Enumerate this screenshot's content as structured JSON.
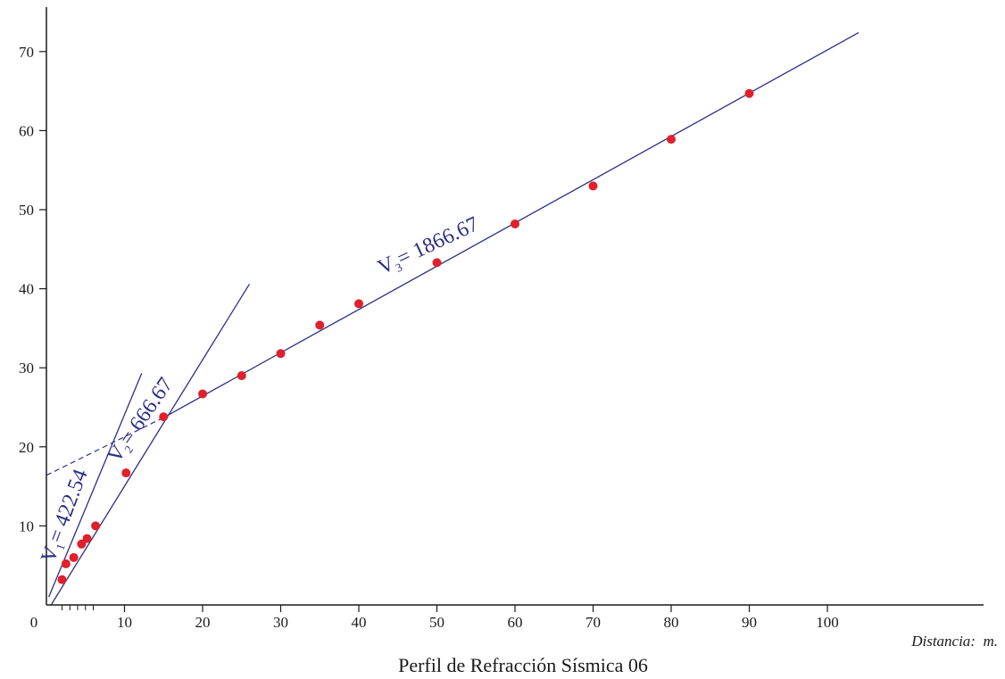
{
  "chart_data": {
    "type": "scatter",
    "title": "Perfil de Refracción Sísmica 06",
    "xlabel": "Distancia:  m.",
    "ylabel": "",
    "xlim": [
      0,
      120
    ],
    "ylim": [
      0,
      75
    ],
    "x_ticks": [
      0,
      10,
      20,
      30,
      40,
      50,
      60,
      70,
      80,
      90,
      100
    ],
    "y_ticks": [
      10,
      20,
      30,
      40,
      50,
      60,
      70
    ],
    "minor_x_ticks": [
      2,
      3,
      4,
      5,
      6
    ],
    "grid": false,
    "colors": {
      "points": "#e0202a",
      "lines": "#2b2f86",
      "axes": "#1a1a1a"
    },
    "points": [
      {
        "x": 2,
        "y": 3.2
      },
      {
        "x": 2.5,
        "y": 5.2
      },
      {
        "x": 3.5,
        "y": 6.0
      },
      {
        "x": 4.5,
        "y": 7.7
      },
      {
        "x": 5.2,
        "y": 8.4
      },
      {
        "x": 6.3,
        "y": 10.0
      },
      {
        "x": 10.2,
        "y": 16.7
      },
      {
        "x": 15,
        "y": 23.8
      },
      {
        "x": 20,
        "y": 26.7
      },
      {
        "x": 25,
        "y": 29.0
      },
      {
        "x": 30,
        "y": 31.8
      },
      {
        "x": 35,
        "y": 35.4
      },
      {
        "x": 40,
        "y": 38.1
      },
      {
        "x": 50,
        "y": 43.3
      },
      {
        "x": 60,
        "y": 48.2
      },
      {
        "x": 70,
        "y": 53.0
      },
      {
        "x": 80,
        "y": 58.9
      },
      {
        "x": 90,
        "y": 64.7
      }
    ],
    "fit_lines": [
      {
        "name": "V1",
        "label_main": "V",
        "label_sub": "1",
        "label_rest": "= 422.54",
        "x": [
          0.3,
          12.2
        ],
        "y": [
          1.0,
          29.3
        ]
      },
      {
        "name": "V2",
        "label_main": "V",
        "label_sub": "2",
        "label_rest": "= 666.67",
        "x": [
          0.6,
          26.0
        ],
        "y": [
          0.0,
          40.6
        ]
      },
      {
        "name": "V3",
        "label_main": "V",
        "label_sub": "3",
        "label_rest": "= 1866.67",
        "x": [
          15,
          104
        ],
        "y": [
          23.7,
          72.4
        ]
      }
    ],
    "intercept_extension": {
      "x": [
        0,
        15
      ],
      "y": [
        16.4,
        23.7
      ],
      "style": "dashed"
    }
  }
}
